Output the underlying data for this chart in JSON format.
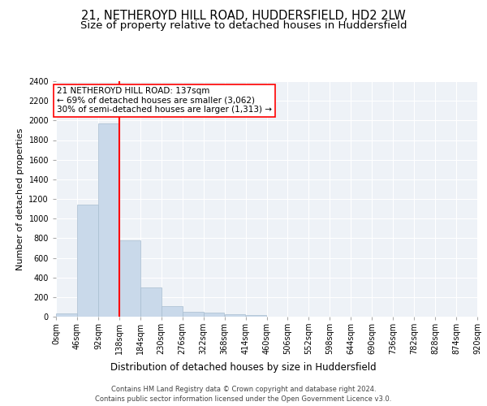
{
  "title_line1": "21, NETHEROYD HILL ROAD, HUDDERSFIELD, HD2 2LW",
  "title_line2": "Size of property relative to detached houses in Huddersfield",
  "xlabel": "Distribution of detached houses by size in Huddersfield",
  "ylabel": "Number of detached properties",
  "bar_color": "#c9d9ea",
  "bar_edgecolor": "#a8bdd0",
  "redline_x": 138,
  "annotation_text": "21 NETHEROYD HILL ROAD: 137sqm\n← 69% of detached houses are smaller (3,062)\n30% of semi-detached houses are larger (1,313) →",
  "bin_edges": [
    0,
    46,
    92,
    138,
    184,
    230,
    276,
    322,
    368,
    414,
    460,
    506,
    552,
    598,
    644,
    690,
    736,
    782,
    828,
    874,
    920
  ],
  "bar_heights": [
    35,
    1140,
    1970,
    780,
    300,
    105,
    48,
    40,
    25,
    18,
    0,
    0,
    0,
    0,
    0,
    0,
    0,
    0,
    0,
    0
  ],
  "ylim": [
    0,
    2400
  ],
  "yticks": [
    0,
    200,
    400,
    600,
    800,
    1000,
    1200,
    1400,
    1600,
    1800,
    2000,
    2200,
    2400
  ],
  "footer_line1": "Contains HM Land Registry data © Crown copyright and database right 2024.",
  "footer_line2": "Contains public sector information licensed under the Open Government Licence v3.0.",
  "background_color": "#eef2f7",
  "grid_color": "#ffffff",
  "title1_fontsize": 10.5,
  "title2_fontsize": 9.5,
  "xlabel_fontsize": 8.5,
  "ylabel_fontsize": 8,
  "tick_fontsize": 7,
  "footer_fontsize": 6,
  "annotation_fontsize": 7.5
}
